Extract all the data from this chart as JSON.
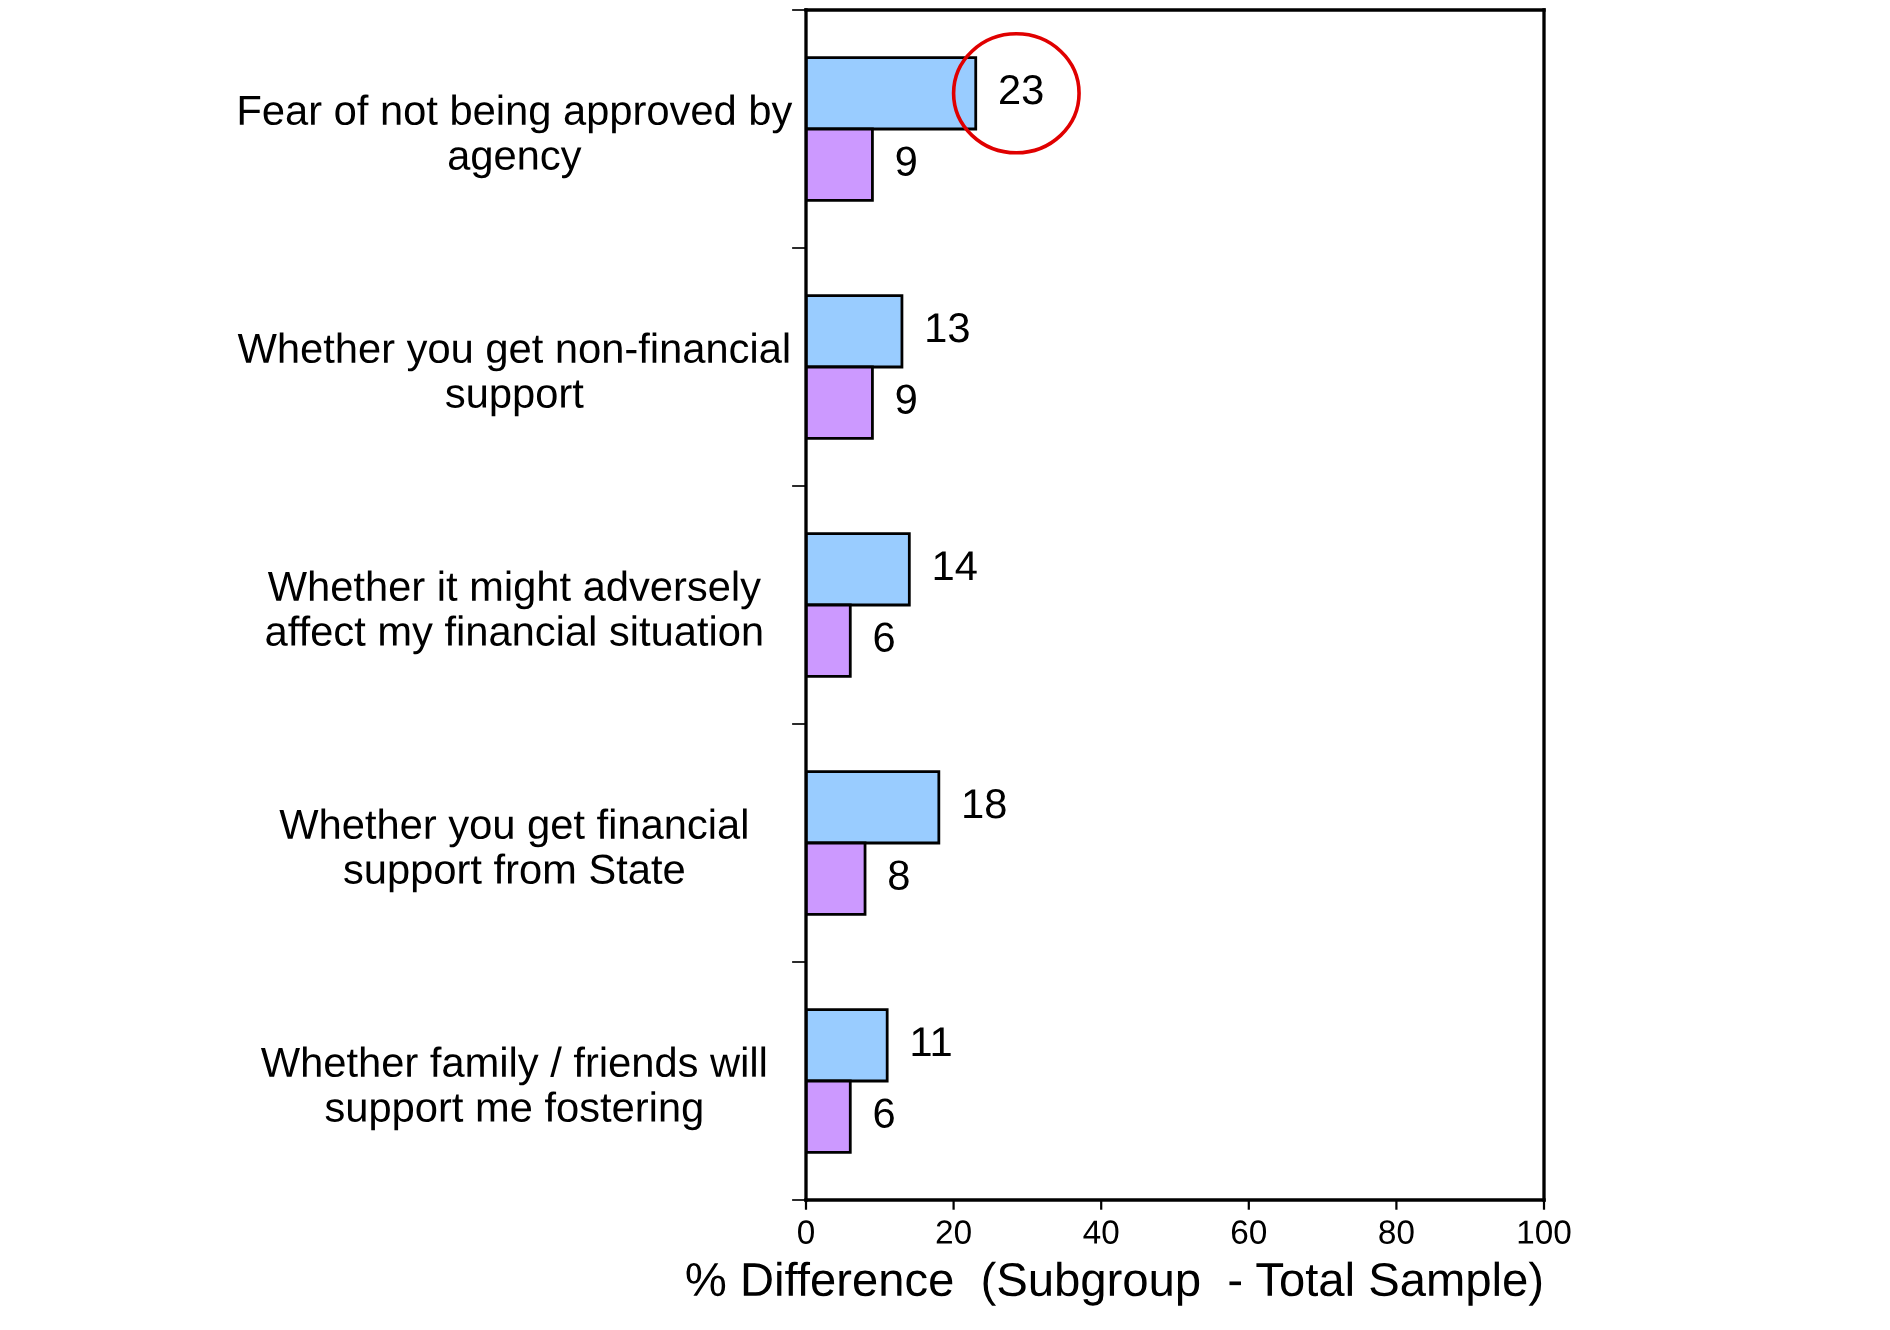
{
  "chart_data": {
    "type": "bar",
    "orientation": "horizontal",
    "categories": [
      "Fear of not being approved by\nagency",
      "Whether you get non-financial\nsupport",
      "Whether it might adversely\naffect my financial situation",
      "Whether you get financial\nsupport from State",
      "Whether family / friends will\nsupport me fostering"
    ],
    "series": [
      {
        "color": "#99ccff",
        "values": [
          23,
          13,
          14,
          18,
          11
        ]
      },
      {
        "color": "#cc99ff",
        "values": [
          9,
          9,
          6,
          8,
          6
        ]
      }
    ],
    "xlim": [
      0,
      100
    ],
    "xticks": [
      0,
      20,
      40,
      60,
      80,
      100
    ],
    "xlabel": "% Difference  (Subgroup  - Total Sample)",
    "data_labels": true,
    "grid": false,
    "legend": false
  }
}
